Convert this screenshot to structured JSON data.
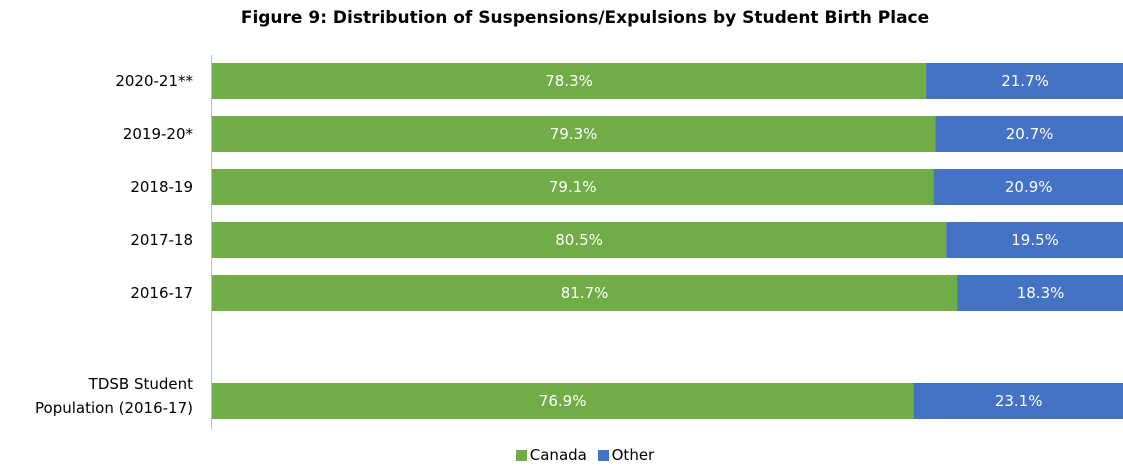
{
  "chart_data": {
    "type": "bar",
    "orientation": "horizontal",
    "stacked": true,
    "title": "Figure 9: Distribution of Suspensions/Expulsions by Student Birth Place",
    "categories": [
      "2020-21**",
      "2019-20*",
      "2018-19",
      "2017-18",
      "2016-17",
      "TDSB Student Population (2016-17)"
    ],
    "series": [
      {
        "name": "Canada",
        "color": "#70ad47",
        "values": [
          78.3,
          79.3,
          79.1,
          80.5,
          81.7,
          76.9
        ],
        "labels": [
          "78.3%",
          "79.3%",
          "79.1%",
          "80.5%",
          "81.7%",
          "76.9%"
        ]
      },
      {
        "name": "Other",
        "color": "#4472c4",
        "values": [
          21.7,
          20.7,
          20.9,
          19.5,
          18.3,
          23.1
        ],
        "labels": [
          "21.7%",
          "20.7%",
          "20.9%",
          "19.5%",
          "18.3%",
          "23.1%"
        ]
      }
    ],
    "xlim": [
      0,
      100
    ],
    "legend": "bottom"
  }
}
